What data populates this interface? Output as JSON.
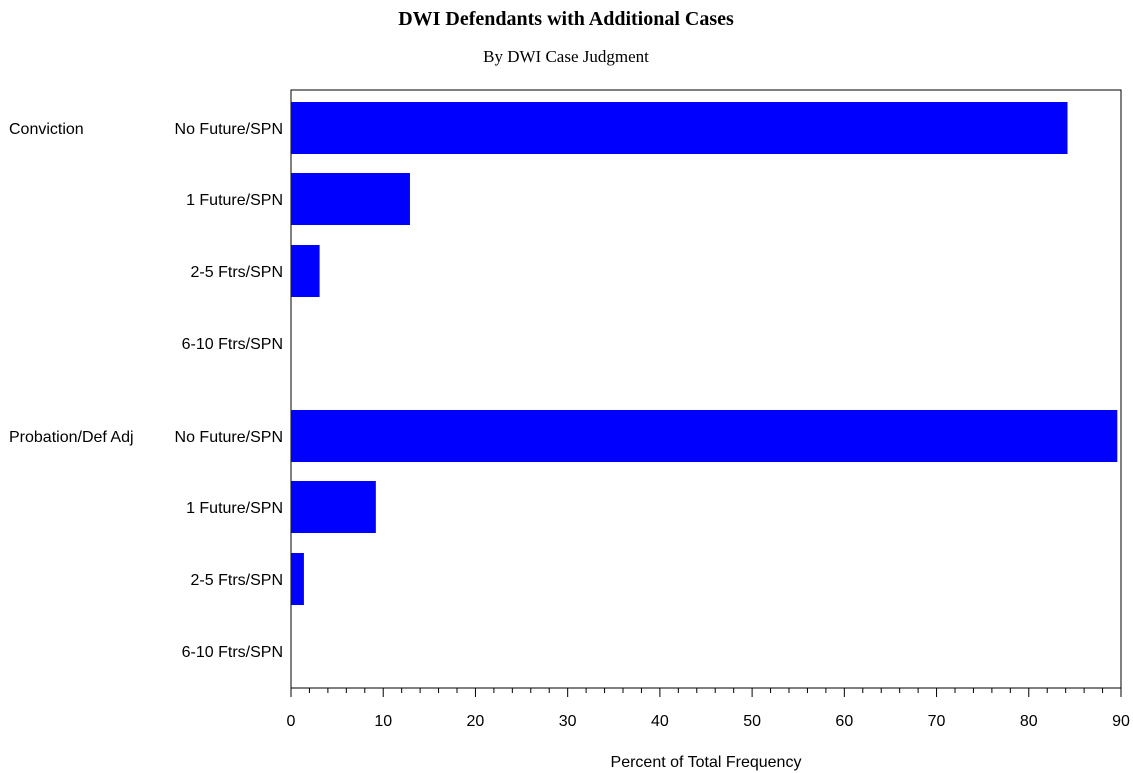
{
  "chart_data": {
    "type": "bar",
    "orientation": "horizontal",
    "title": "DWI Defendants with Additional Cases",
    "subtitle": "By DWI Case Judgment",
    "xlabel": "Percent of Total Frequency",
    "xlim": [
      0,
      90
    ],
    "xticks": [
      "0",
      "10",
      "20",
      "30",
      "40",
      "50",
      "60",
      "70",
      "80",
      "90"
    ],
    "bar_color": "#0000ff",
    "groups": [
      {
        "name": "Conviction",
        "categories": [
          "No Future/SPN",
          "1 Future/SPN",
          "2-5 Ftrs/SPN",
          "6-10 Ftrs/SPN"
        ],
        "values": [
          84.2,
          12.9,
          3.1,
          0
        ]
      },
      {
        "name": "Probation/Def Adj",
        "categories": [
          "No Future/SPN",
          "1 Future/SPN",
          "2-5 Ftrs/SPN",
          "6-10 Ftrs/SPN"
        ],
        "values": [
          89.6,
          9.2,
          1.4,
          0
        ]
      }
    ]
  }
}
